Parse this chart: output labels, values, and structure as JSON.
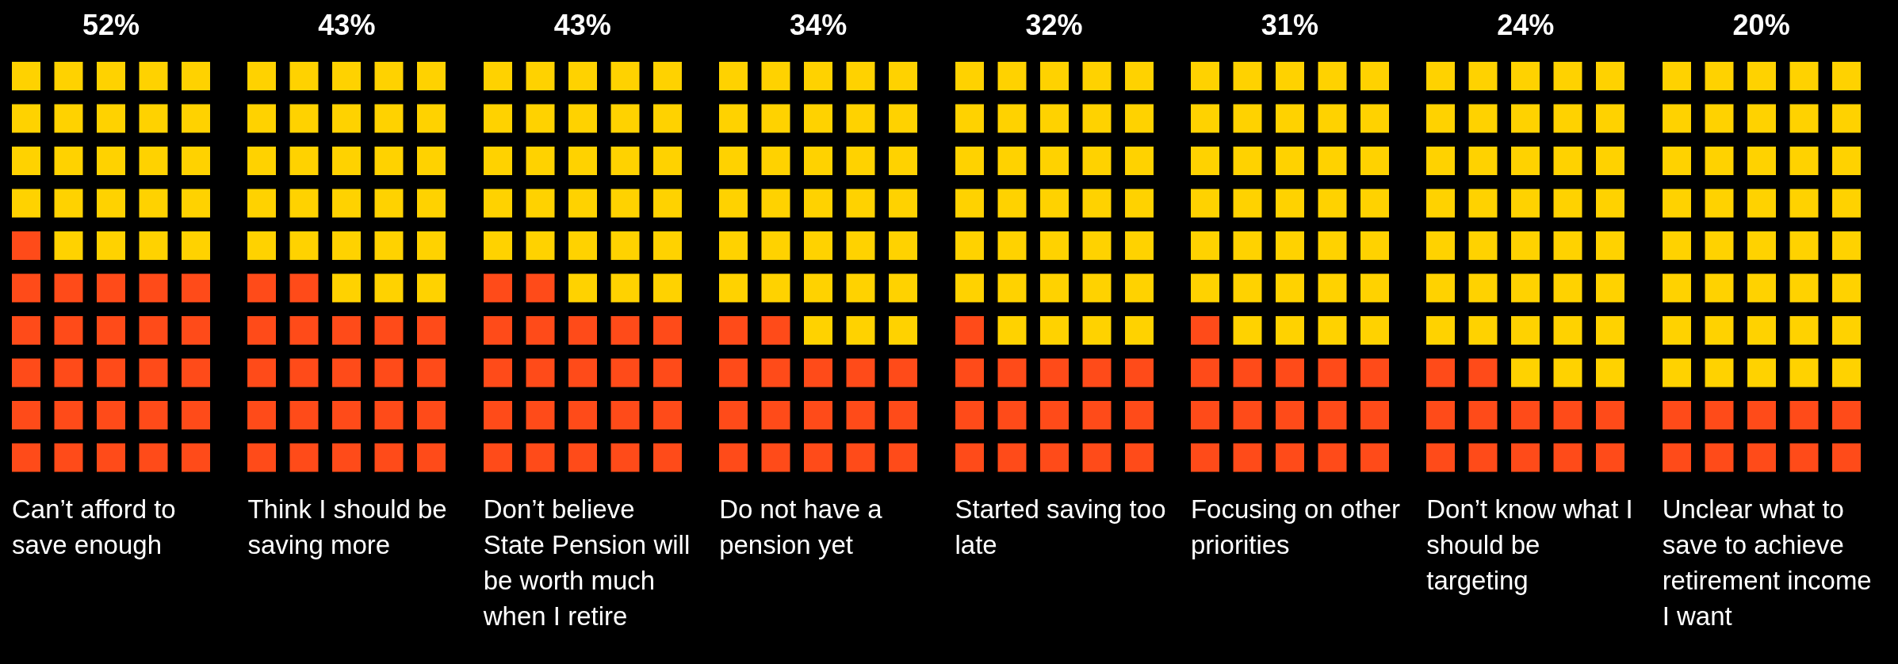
{
  "chart_data": {
    "type": "other",
    "categories": [
      "Can’t afford to save enough",
      "Think I should be saving more",
      "Don’t believe State Pension will be worth much when I retire",
      "Do not have a pension yet",
      "Started saving too late",
      "Focusing on other priorities",
      "Don’t know what I should be targeting",
      "Unclear what to save to achieve retirement income I want"
    ],
    "values": [
      52,
      43,
      43,
      34,
      32,
      31,
      24,
      20
    ],
    "value_labels": [
      "52%",
      "43%",
      "43%",
      "34%",
      "32%",
      "31%",
      "24%",
      "20%"
    ],
    "color": "#ff4b19"
  }
}
